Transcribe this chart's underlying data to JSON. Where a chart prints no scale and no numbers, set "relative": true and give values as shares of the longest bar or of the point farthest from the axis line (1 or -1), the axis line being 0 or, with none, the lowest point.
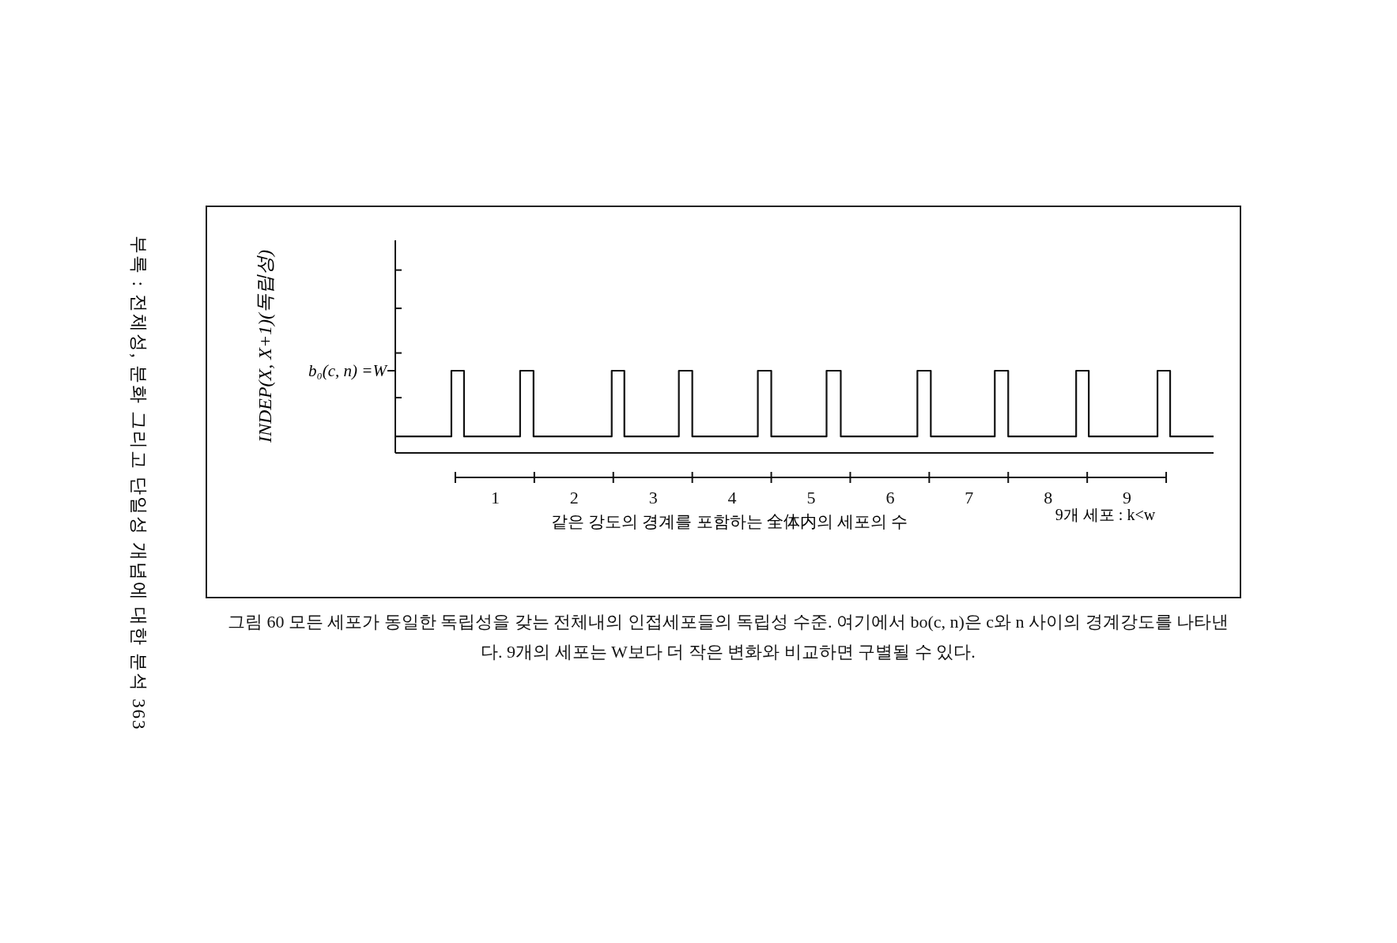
{
  "chart_data": {
    "type": "step",
    "xlabel": "같은 강도의 경계를 포함하는 全体内의 세포의 수",
    "xlim": [
      -0.76,
      9.6
    ],
    "xticks": [
      {
        "value": 0.5,
        "label": "1"
      },
      {
        "value": 1.5,
        "label": "2"
      },
      {
        "value": 2.5,
        "label": "3"
      },
      {
        "value": 3.5,
        "label": "4"
      },
      {
        "value": 4.5,
        "label": "5"
      },
      {
        "value": 5.5,
        "label": "6"
      },
      {
        "value": 6.5,
        "label": "7"
      },
      {
        "value": 7.5,
        "label": "8"
      },
      {
        "value": 8.5,
        "label": "9"
      }
    ],
    "relative": true,
    "series": [
      {
        "color": "#111111",
        "x": [
          -0.76,
          -0.05,
          0.11,
          0.82,
          0.99,
          1.98,
          2.14,
          2.83,
          3.0,
          3.83,
          4.0,
          4.7,
          4.88,
          5.85,
          6.02,
          6.83,
          7.0,
          7.86,
          8.02,
          8.89,
          9.05,
          9.6
        ],
        "values": [
          0.2,
          1,
          0.2,
          1,
          0.2,
          1,
          0.2,
          1,
          0.2,
          1,
          0.2,
          1,
          0.2,
          1,
          0.2,
          1,
          0.2,
          1,
          0.2,
          1,
          0.2,
          0.2
        ]
      }
    ],
    "annotations": [
      "9개 세포 : k<w",
      "b₀(c, n) =W",
      "INDEP(X, X+1)(독립성)",
      "그림 60  모든 세포가 동일한 독립성을 갖는 전체내의 인접세포들의 독립성 수준. 여기에서 bo(c, n)은 c와 n 사이의 경계강도를 나타낸다. 9개의 세포는 W보다 더 작은 변화와 비교하면 구별될 수 있다.",
      "부록 : 전체성, 분화 그리고 단일성 개념에 대한 분석 363"
    ],
    "grid": false,
    "marker": "none",
    "line_style": "solid"
  }
}
